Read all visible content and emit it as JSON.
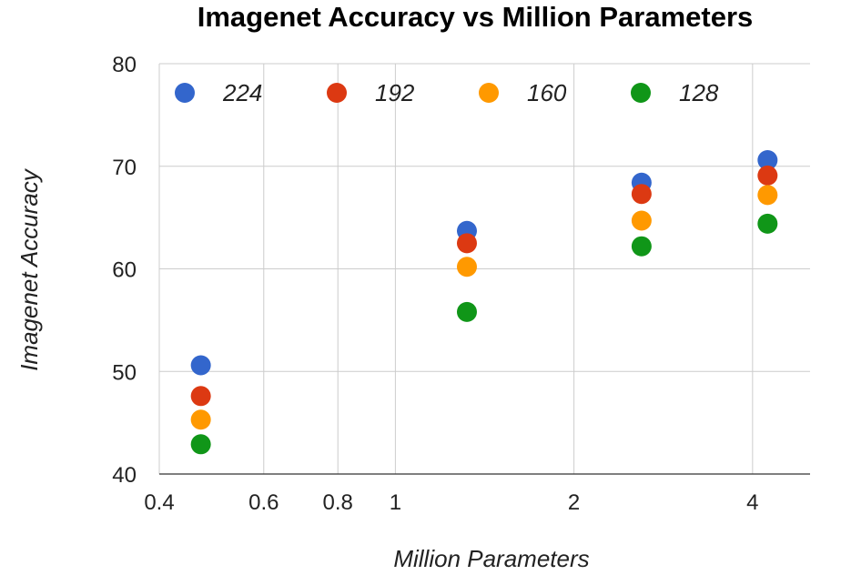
{
  "chart_data": {
    "type": "scatter",
    "title": "Imagenet Accuracy vs Million Parameters",
    "xlabel": "Million Parameters",
    "ylabel": "Imagenet Accuracy",
    "x_scale": "log",
    "xlim": [
      0.4,
      5.0
    ],
    "ylim": [
      40,
      80
    ],
    "x_ticks": [
      0.4,
      0.6,
      0.8,
      1,
      2,
      4
    ],
    "x_tick_labels": [
      "0.4",
      "0.6",
      "0.8",
      "1",
      "2",
      "4"
    ],
    "y_ticks": [
      40,
      50,
      60,
      70,
      80
    ],
    "y_tick_labels": [
      "40",
      "50",
      "60",
      "70",
      "80"
    ],
    "grid": true,
    "legend_position": "top",
    "series": [
      {
        "name": "224",
        "color": "#3366cc",
        "points": [
          {
            "x": 0.47,
            "y": 50.6
          },
          {
            "x": 1.32,
            "y": 63.7
          },
          {
            "x": 2.6,
            "y": 68.4
          },
          {
            "x": 4.24,
            "y": 70.6
          }
        ]
      },
      {
        "name": "192",
        "color": "#dc3912",
        "points": [
          {
            "x": 0.47,
            "y": 47.6
          },
          {
            "x": 1.32,
            "y": 62.5
          },
          {
            "x": 2.6,
            "y": 67.3
          },
          {
            "x": 4.24,
            "y": 69.1
          }
        ]
      },
      {
        "name": "160",
        "color": "#ff9900",
        "points": [
          {
            "x": 0.47,
            "y": 45.3
          },
          {
            "x": 1.32,
            "y": 60.2
          },
          {
            "x": 2.6,
            "y": 64.7
          },
          {
            "x": 4.24,
            "y": 67.2
          }
        ]
      },
      {
        "name": "128",
        "color": "#109618",
        "points": [
          {
            "x": 0.47,
            "y": 42.9
          },
          {
            "x": 1.32,
            "y": 55.8
          },
          {
            "x": 2.6,
            "y": 62.2
          },
          {
            "x": 4.24,
            "y": 64.4
          }
        ]
      }
    ]
  }
}
